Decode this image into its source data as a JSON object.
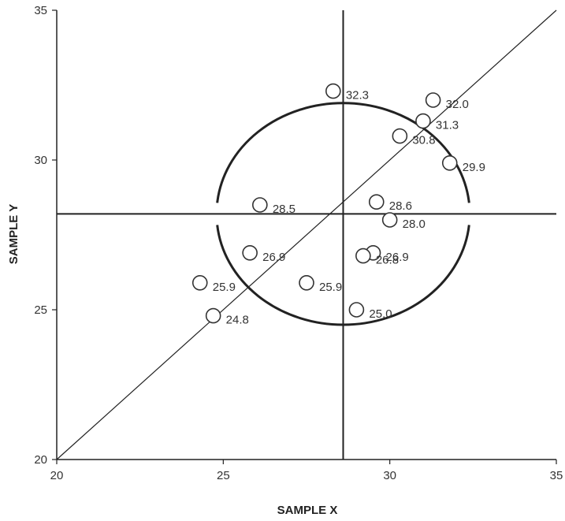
{
  "chart_data": {
    "type": "scatter",
    "xlabel": "SAMPLE X",
    "ylabel": "SAMPLE Y",
    "xlim": [
      20,
      35
    ],
    "ylim": [
      20,
      35
    ],
    "x_ticks": [
      20,
      25,
      30,
      35
    ],
    "y_ticks": [
      20,
      25,
      30,
      35
    ],
    "x_tick_labels": [
      "20",
      "25",
      "30",
      "35"
    ],
    "y_tick_labels": [
      "20",
      "25",
      "30",
      "35"
    ],
    "grid": false,
    "legend": "none",
    "mean_x": 28.6,
    "mean_y": 28.2,
    "identity_line": true,
    "circle": {
      "cx": 28.6,
      "cy": 28.2,
      "rx": 3.8,
      "ry": 3.7
    },
    "points": [
      {
        "x": 28.3,
        "y": 32.3,
        "label": "32.3"
      },
      {
        "x": 31.3,
        "y": 32.0,
        "label": "32.0"
      },
      {
        "x": 31.0,
        "y": 31.3,
        "label": "31.3"
      },
      {
        "x": 30.3,
        "y": 30.8,
        "label": "30.8"
      },
      {
        "x": 31.8,
        "y": 29.9,
        "label": "29.9"
      },
      {
        "x": 26.1,
        "y": 28.5,
        "label": "28.5"
      },
      {
        "x": 29.6,
        "y": 28.6,
        "label": "28.6"
      },
      {
        "x": 30.0,
        "y": 28.0,
        "label": "28.0"
      },
      {
        "x": 25.8,
        "y": 26.9,
        "label": "26.9"
      },
      {
        "x": 29.5,
        "y": 26.9,
        "label": "26.9"
      },
      {
        "x": 29.2,
        "y": 26.8,
        "label": "26.8"
      },
      {
        "x": 24.3,
        "y": 25.9,
        "label": "25.9"
      },
      {
        "x": 27.5,
        "y": 25.9,
        "label": "25.9"
      },
      {
        "x": 24.7,
        "y": 24.8,
        "label": "24.8"
      },
      {
        "x": 29.0,
        "y": 25.0,
        "label": "25.0"
      }
    ],
    "colors": {
      "axis": "#222222",
      "marker_fill": "#ffffff",
      "marker_stroke": "#333333"
    }
  }
}
